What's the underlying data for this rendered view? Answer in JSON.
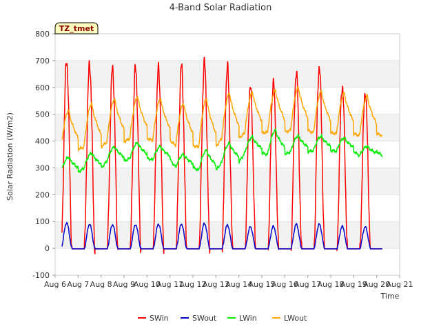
{
  "chart_data": {
    "type": "line",
    "title": "4-Band Solar Radiation",
    "xlabel": "Time",
    "ylabel": "Solar Radiation (W/m2)",
    "site_label": "TZ_tmet",
    "ylim": [
      -100,
      800
    ],
    "yticks": [
      -100,
      0,
      100,
      200,
      300,
      400,
      500,
      600,
      700,
      800
    ],
    "xlim": [
      6,
      21
    ],
    "xticks": [
      6,
      7,
      8,
      9,
      10,
      11,
      12,
      13,
      14,
      15,
      16,
      17,
      18,
      19,
      20,
      21
    ],
    "xtick_labels": [
      "Aug 6",
      "Aug 7",
      "Aug 8",
      "Aug 9",
      "Aug 10",
      "Aug 11",
      "Aug 12",
      "Aug 13",
      "Aug 14",
      "Aug 15",
      "Aug 16",
      "Aug 17",
      "Aug 18",
      "Aug 19",
      "Aug 20",
      "Aug 21"
    ],
    "grid": true,
    "legend_placement": "bottom",
    "days": [
      6,
      7,
      8,
      9,
      10,
      11,
      12,
      13,
      14,
      15,
      16,
      17,
      18,
      19
    ],
    "series": [
      {
        "name": "SWin",
        "color": "#ff0000",
        "daily_peak": [
          700,
          688,
          673,
          673,
          670,
          678,
          692,
          675,
          600,
          620,
          658,
          678,
          605,
          585
        ]
      },
      {
        "name": "SWout",
        "color": "#0000cc",
        "daily_peak": [
          95,
          90,
          88,
          88,
          90,
          90,
          93,
          87,
          80,
          82,
          90,
          90,
          82,
          80
        ]
      },
      {
        "name": "LWin",
        "color": "#00ee00",
        "day_max": [
          340,
          355,
          378,
          393,
          380,
          350,
          365,
          392,
          415,
          440,
          420,
          418,
          412,
          380
        ],
        "night_min": [
          284,
          298,
          325,
          335,
          330,
          303,
          290,
          320,
          355,
          350,
          360,
          365,
          362,
          345
        ]
      },
      {
        "name": "LWout",
        "color": "#ffa500",
        "day_max": [
          515,
          540,
          557,
          565,
          557,
          540,
          558,
          578,
          582,
          590,
          600,
          585,
          578,
          568
        ],
        "night_min": [
          370,
          377,
          397,
          410,
          403,
          383,
          377,
          410,
          430,
          433,
          440,
          430,
          428,
          420
        ]
      }
    ]
  }
}
